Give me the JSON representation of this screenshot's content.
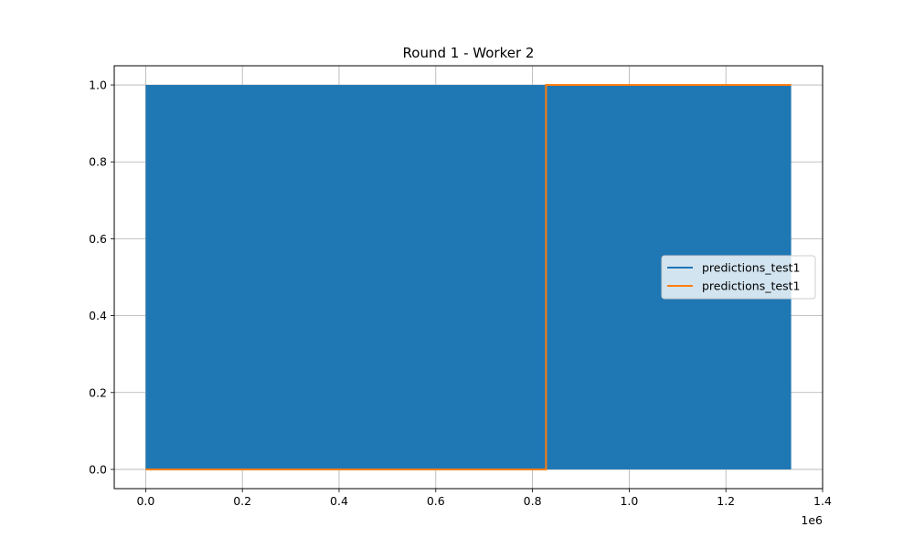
{
  "chart_data": {
    "type": "line",
    "title": "Round 1 - Worker 2",
    "xlabel": "",
    "ylabel": "",
    "x_offset_label": "1e6",
    "xlim": [
      -65000,
      1400000
    ],
    "ylim": [
      -0.05,
      1.05
    ],
    "x_ticks": [
      0,
      200000,
      400000,
      600000,
      800000,
      1000000,
      1200000,
      1400000
    ],
    "x_tick_labels": [
      "0.0",
      "0.2",
      "0.4",
      "0.6",
      "0.8",
      "1.0",
      "1.2",
      "1.4"
    ],
    "y_ticks": [
      0.0,
      0.2,
      0.4,
      0.6,
      0.8,
      1.0
    ],
    "y_tick_labels": [
      "0.0",
      "0.2",
      "0.4",
      "0.6",
      "0.8",
      "1.0"
    ],
    "grid": true,
    "legend_placement": "center-right",
    "series": [
      {
        "name": "predictions_test1",
        "color": "#1f77b4",
        "style": "dense-oscillation",
        "x_range": [
          0,
          1335000
        ],
        "y_range": [
          0,
          1
        ]
      },
      {
        "name": "predictions_test1",
        "color": "#ff7f0e",
        "style": "step",
        "x": [
          0,
          828000,
          828000,
          1335000
        ],
        "y": [
          0,
          0,
          1,
          1
        ]
      }
    ]
  }
}
